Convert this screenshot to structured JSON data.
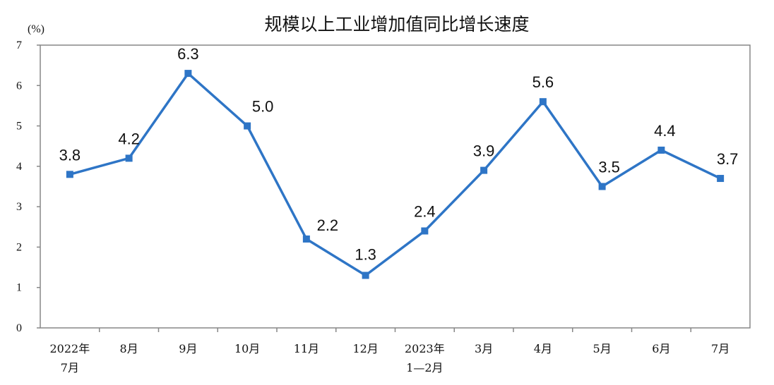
{
  "chart_data": {
    "type": "line",
    "title": "规模以上工业增加值同比增长速度",
    "ylabel": "(%)",
    "xlabel": "",
    "ylim": [
      0,
      7
    ],
    "y_ticks": [
      "0",
      "1",
      "2",
      "3",
      "4",
      "5",
      "6",
      "7"
    ],
    "categories": [
      [
        "2022年",
        "7月"
      ],
      [
        "8月"
      ],
      [
        "9月"
      ],
      [
        "10月"
      ],
      [
        "11月"
      ],
      [
        "12月"
      ],
      [
        "2023年",
        "1—2月"
      ],
      [
        "3月"
      ],
      [
        "4月"
      ],
      [
        "5月"
      ],
      [
        "6月"
      ],
      [
        "7月"
      ]
    ],
    "series": [
      {
        "values": [
          3.8,
          4.2,
          6.3,
          5.0,
          2.2,
          1.3,
          2.4,
          3.9,
          5.6,
          3.5,
          4.4,
          3.7
        ],
        "data_labels": [
          "3.8",
          "4.2",
          "6.3",
          "5.0",
          "2.2",
          "1.3",
          "2.4",
          "3.9",
          "5.6",
          "3.5",
          "4.4",
          "3.7"
        ]
      }
    ],
    "grid": false,
    "legend": "none",
    "colors": {
      "line": "#2e75c6",
      "axis": "#878787",
      "frame": "#878787",
      "text": "#111111"
    }
  }
}
